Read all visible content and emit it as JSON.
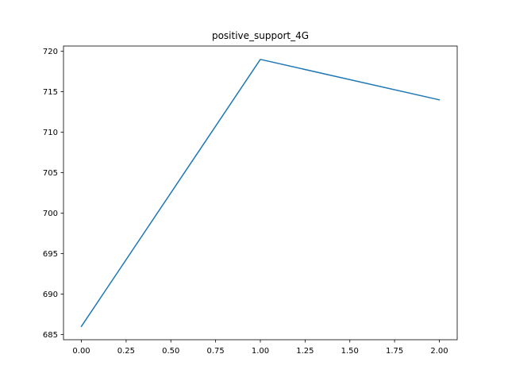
{
  "chart_data": {
    "type": "line",
    "title": "positive_support_4G",
    "xlabel": "",
    "ylabel": "",
    "x": [
      0,
      1,
      2
    ],
    "series": [
      {
        "values": [
          686,
          719,
          714
        ],
        "color": "#1f77b4"
      }
    ],
    "xlim": [
      -0.1,
      2.1
    ],
    "ylim": [
      684.35,
      720.65
    ],
    "xticks": [
      0.0,
      0.25,
      0.5,
      0.75,
      1.0,
      1.25,
      1.5,
      1.75,
      2.0
    ],
    "xtick_labels": [
      "0.00",
      "0.25",
      "0.50",
      "0.75",
      "1.00",
      "1.25",
      "1.50",
      "1.75",
      "2.00"
    ],
    "yticks": [
      685,
      690,
      695,
      700,
      705,
      710,
      715,
      720
    ],
    "ytick_labels": [
      "685",
      "690",
      "695",
      "700",
      "705",
      "710",
      "715",
      "720"
    ],
    "grid": false,
    "legend": "none"
  }
}
